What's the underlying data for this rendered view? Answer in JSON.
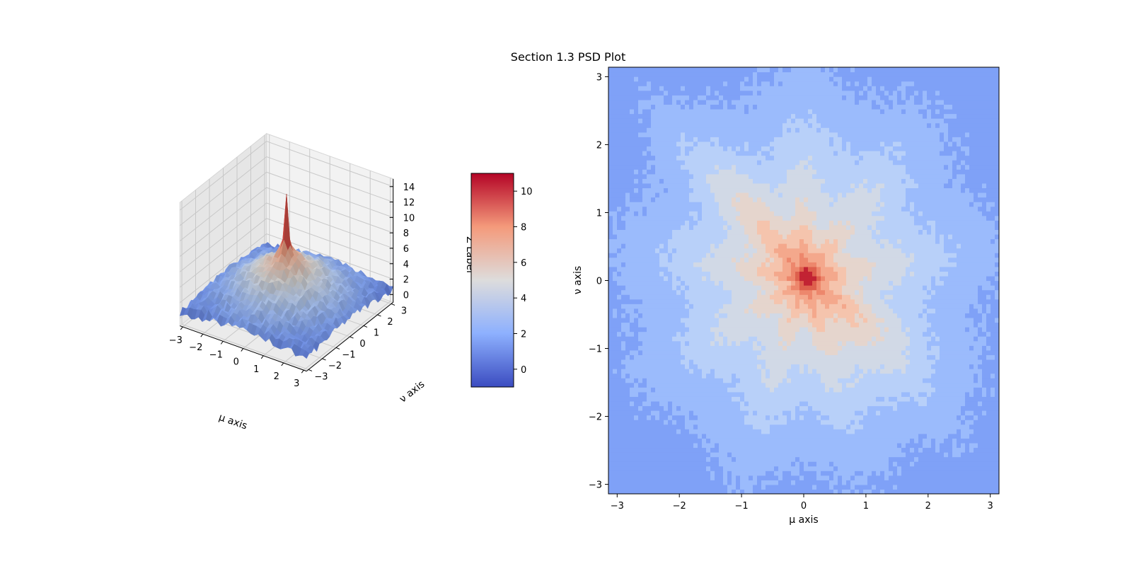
{
  "figure": {
    "title": "Section 1.3 PSD Plot"
  },
  "chart_data": [
    {
      "type": "surface",
      "title": "",
      "xlabel": "μ axis",
      "ylabel": "ν axis",
      "zlabel": "Z Label",
      "xlim": [
        -3.14,
        3.14
      ],
      "ylim": [
        -3.14,
        3.14
      ],
      "zlim": [
        -1,
        15
      ],
      "x_ticks": [
        "−3",
        "−2",
        "−1",
        "0",
        "1",
        "2",
        "3"
      ],
      "y_ticks": [
        "−3",
        "−2",
        "−1",
        "0",
        "1",
        "2",
        "3"
      ],
      "z_ticks": [
        "0",
        "2",
        "4",
        "6",
        "8",
        "10",
        "12",
        "14"
      ],
      "colormap": "coolwarm",
      "grid": true,
      "features": {
        "peak": {
          "x": 0,
          "y": 0,
          "z": 14
        },
        "plateau_center_z": 6,
        "edge_z": 1
      },
      "colorbar": {
        "ticks": [
          "0",
          "2",
          "4",
          "6",
          "8",
          "10"
        ],
        "range": [
          -1,
          11
        ],
        "placement": "right"
      }
    },
    {
      "type": "contourf",
      "title": "",
      "xlabel": "μ axis",
      "ylabel": "ν axis",
      "xlim": [
        -3.14,
        3.14
      ],
      "ylim": [
        -3.14,
        3.14
      ],
      "x_ticks": [
        "−3",
        "−2",
        "−1",
        "0",
        "1",
        "2",
        "3"
      ],
      "y_ticks": [
        "−3",
        "−2",
        "−1",
        "0",
        "1",
        "2",
        "3"
      ],
      "colormap": "coolwarm",
      "levels": [
        -1,
        0,
        1,
        2,
        3,
        4,
        5,
        6,
        7,
        8,
        9,
        10,
        11
      ],
      "features": {
        "peak": {
          "x": 0.05,
          "y": 0.05,
          "z": 11
        }
      }
    }
  ]
}
